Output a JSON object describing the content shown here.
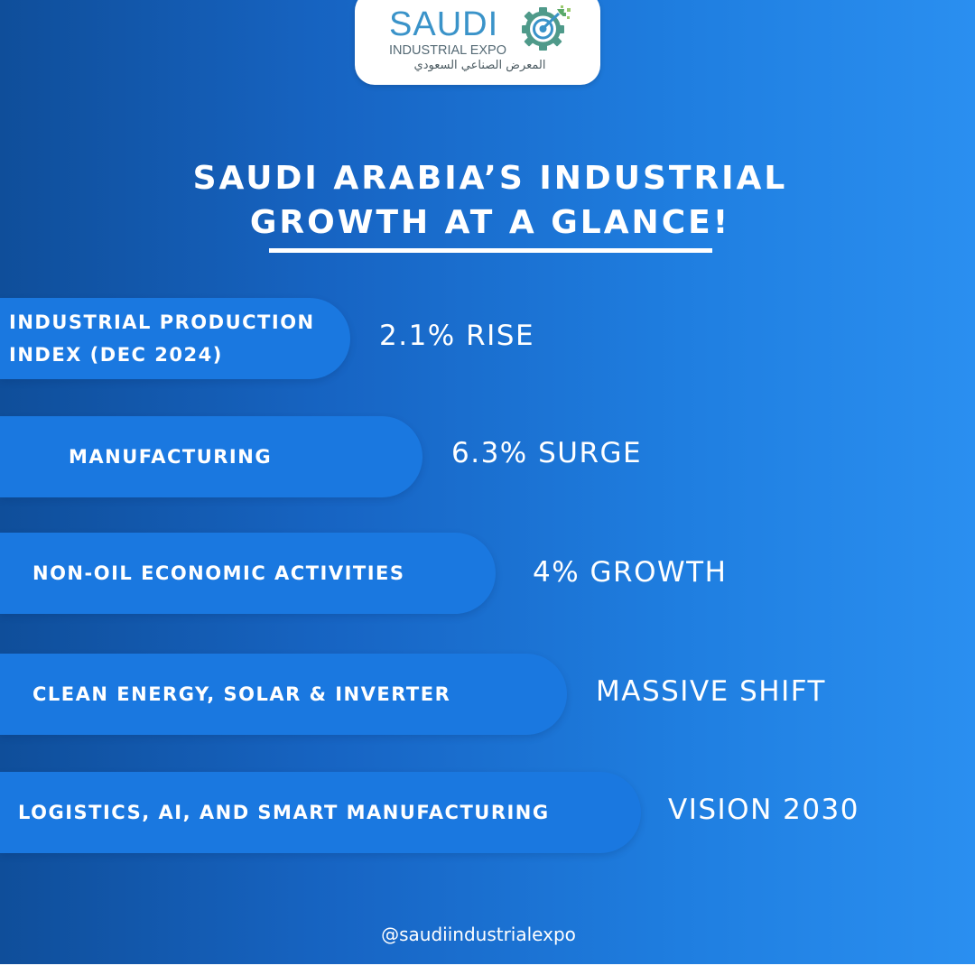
{
  "logo": {
    "name": "SAUDI",
    "subtitle": "INDUSTRIAL EXPO",
    "arabic": "المعرض الصناعي السعودي",
    "colors": {
      "blue": "#3a93c9",
      "green": "#5aa96a",
      "grey": "#556a75"
    }
  },
  "headline": {
    "line1": "SAUDI ARABIA’S INDUSTRIAL",
    "line2": "GROWTH AT A GLANCE!"
  },
  "stats": [
    {
      "label_lines": [
        "INDUSTRIAL PRODUCTION",
        "INDEX (DEC 2024)"
      ],
      "value": "2.1% RISE"
    },
    {
      "label_lines": [
        "MANUFACTURING"
      ],
      "value": "6.3% SURGE"
    },
    {
      "label_lines": [
        "NON-OIL ECONOMIC ACTIVITIES"
      ],
      "value": "4% GROWTH"
    },
    {
      "label_lines": [
        "CLEAN ENERGY, SOLAR & INVERTER"
      ],
      "value": "MASSIVE SHIFT"
    },
    {
      "label_lines": [
        "LOGISTICS, AI, AND SMART MANUFACTURING"
      ],
      "value": "VISION 2030"
    }
  ],
  "footer": {
    "handle": "@saudiindustrialexpo"
  },
  "colors": {
    "background_start": "#0f4e9a",
    "background_end": "#2a8ff0",
    "pill": "#1a78e0",
    "text": "#ffffff"
  }
}
